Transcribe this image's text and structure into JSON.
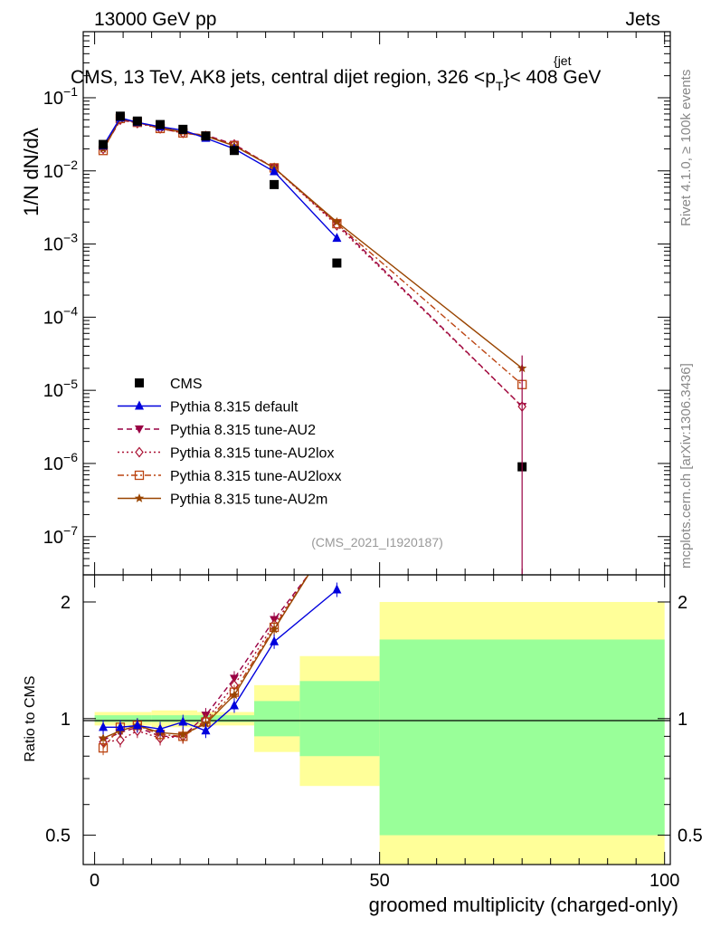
{
  "header": {
    "left": "13000 GeV pp",
    "right": "Jets"
  },
  "plot_title": "CMS, 13 TeV, AK8 jets, central dijet region, 326 <p",
  "plot_title_sub": "T",
  "plot_title_sup": "jet",
  "plot_title_end": "}< 408 GeV",
  "plot_title_brace": "{",
  "side_text_top": "Rivet 4.1.0, ≥ 100k events",
  "side_text_bottom": "mcplots.cern.ch [arXiv:1306.3436]",
  "analysis_id": "(CMS_2021_I1920187)",
  "y_label_main": "1/N dN/dλ",
  "y_label_ratio": "Ratio to CMS",
  "x_label": "groomed multiplicity (charged-only)",
  "colors": {
    "cms": "#000000",
    "default": "#0000dd",
    "au2": "#990044",
    "au2lox": "#aa1133",
    "au2loxx": "#bb4411",
    "au2m": "#994400",
    "band_yellow": "#ffff99",
    "band_green": "#99ff99"
  },
  "chart_data": [
    {
      "type": "scatter",
      "panel": "main",
      "yscale": "log",
      "xlim": [
        -2,
        101
      ],
      "ylim": [
        3e-08,
        0.8
      ],
      "y_ticks": [
        "10^-7",
        "10^-6",
        "10^-5",
        "10^-4",
        "10^-3",
        "10^-2",
        "10^-1"
      ],
      "legend_position": "lower-left",
      "series": [
        {
          "key": "cms",
          "name": "CMS",
          "marker": "square",
          "x": [
            1.5,
            4.5,
            7.5,
            11.5,
            15.5,
            19.5,
            24.5,
            31.5,
            42.5,
            75
          ],
          "y": [
            0.023,
            0.056,
            0.048,
            0.043,
            0.037,
            0.03,
            0.019,
            0.0065,
            0.00055,
            9e-07
          ]
        },
        {
          "key": "default",
          "name": "Pythia 8.315 default",
          "marker": "triangle-up",
          "line": "solid",
          "x": [
            1.5,
            4.5,
            7.5,
            11.5,
            15.5,
            19.5,
            24.5,
            31.5,
            42.5
          ],
          "y": [
            0.022,
            0.053,
            0.046,
            0.04,
            0.036,
            0.028,
            0.02,
            0.0098,
            0.0012
          ]
        },
        {
          "key": "au2",
          "name": "Pythia 8.315 tune-AU2",
          "marker": "triangle-down",
          "line": "dashed",
          "x": [
            1.5,
            4.5,
            7.5,
            11.5,
            15.5,
            19.5,
            24.5,
            31.5,
            42.5,
            75
          ],
          "y": [
            0.02,
            0.049,
            0.046,
            0.038,
            0.033,
            0.031,
            0.023,
            0.011,
            0.0019,
            6e-06
          ]
        },
        {
          "key": "au2lox",
          "name": "Pythia 8.315 tune-AU2lox",
          "marker": "diamond-open",
          "line": "dotted",
          "x": [
            1.5,
            4.5,
            7.5,
            11.5,
            15.5,
            19.5,
            24.5,
            31.5,
            42.5,
            75
          ],
          "y": [
            0.02,
            0.05,
            0.045,
            0.038,
            0.033,
            0.03,
            0.023,
            0.011,
            0.0018,
            6e-06
          ]
        },
        {
          "key": "au2loxx",
          "name": "Pythia 8.315 tune-AU2loxx",
          "marker": "square-open",
          "line": "dashdot",
          "x": [
            1.5,
            4.5,
            7.5,
            11.5,
            15.5,
            19.5,
            24.5,
            31.5,
            42.5,
            75
          ],
          "y": [
            0.019,
            0.052,
            0.046,
            0.038,
            0.033,
            0.03,
            0.022,
            0.011,
            0.0019,
            1.2e-05
          ]
        },
        {
          "key": "au2m",
          "name": "Pythia 8.315 tune-AU2m",
          "marker": "star",
          "line": "solid",
          "x": [
            1.5,
            4.5,
            7.5,
            11.5,
            15.5,
            19.5,
            24.5,
            31.5,
            42.5,
            75
          ],
          "y": [
            0.02,
            0.051,
            0.046,
            0.039,
            0.034,
            0.03,
            0.022,
            0.011,
            0.002,
            2e-05
          ]
        }
      ]
    },
    {
      "type": "scatter",
      "panel": "ratio",
      "yscale": "log",
      "xlim": [
        -2,
        101
      ],
      "ylim": [
        0.42,
        2.35
      ],
      "x_ticks": [
        0,
        50,
        100
      ],
      "y_ticks": [
        0.5,
        1,
        2
      ],
      "bands": [
        {
          "x0": 0,
          "x1": 3,
          "yellow": [
            0.96,
            1.04
          ],
          "green": [
            0.98,
            1.02
          ]
        },
        {
          "x0": 3,
          "x1": 10,
          "yellow": [
            0.96,
            1.04
          ],
          "green": [
            0.98,
            1.02
          ]
        },
        {
          "x0": 10,
          "x1": 18,
          "yellow": [
            0.95,
            1.05
          ],
          "green": [
            0.98,
            1.02
          ]
        },
        {
          "x0": 18,
          "x1": 28,
          "yellow": [
            0.96,
            1.04
          ],
          "green": [
            0.98,
            1.02
          ]
        },
        {
          "x0": 28,
          "x1": 36,
          "yellow": [
            0.82,
            1.22
          ],
          "green": [
            0.9,
            1.11
          ]
        },
        {
          "x0": 36,
          "x1": 50,
          "yellow": [
            0.67,
            1.45
          ],
          "green": [
            0.8,
            1.25
          ]
        },
        {
          "x0": 50,
          "x1": 100,
          "yellow": [
            0.38,
            2.0
          ],
          "green": [
            0.5,
            1.6
          ]
        }
      ],
      "series": [
        {
          "key": "default",
          "x": [
            1.5,
            4.5,
            7.5,
            11.5,
            15.5,
            19.5,
            24.5,
            31.5,
            42.5
          ],
          "y": [
            0.95,
            0.95,
            0.96,
            0.94,
            0.98,
            0.93,
            1.08,
            1.58,
            2.15
          ]
        },
        {
          "key": "au2",
          "x": [
            1.5,
            4.5,
            7.5,
            11.5,
            15.5,
            19.5,
            24.5,
            31.5,
            37.5
          ],
          "y": [
            0.88,
            0.92,
            0.95,
            0.9,
            0.9,
            1.02,
            1.27,
            1.8,
            2.35
          ]
        },
        {
          "key": "au2lox",
          "x": [
            1.5,
            4.5,
            7.5,
            11.5,
            15.5,
            19.5,
            24.5,
            31.5,
            37.5
          ],
          "y": [
            0.87,
            0.88,
            0.93,
            0.89,
            0.9,
            0.99,
            1.22,
            1.75,
            2.35
          ]
        },
        {
          "key": "au2loxx",
          "x": [
            1.5,
            4.5,
            7.5,
            11.5,
            15.5,
            19.5,
            24.5,
            31.5,
            37.5
          ],
          "y": [
            0.84,
            0.95,
            0.96,
            0.91,
            0.9,
            0.98,
            1.17,
            1.72,
            2.35
          ]
        },
        {
          "key": "au2m",
          "x": [
            1.5,
            4.5,
            7.5,
            11.5,
            15.5,
            19.5,
            24.5,
            31.5,
            37.5
          ],
          "y": [
            0.89,
            0.93,
            0.96,
            0.92,
            0.91,
            0.97,
            1.15,
            1.7,
            2.35
          ]
        }
      ]
    }
  ]
}
